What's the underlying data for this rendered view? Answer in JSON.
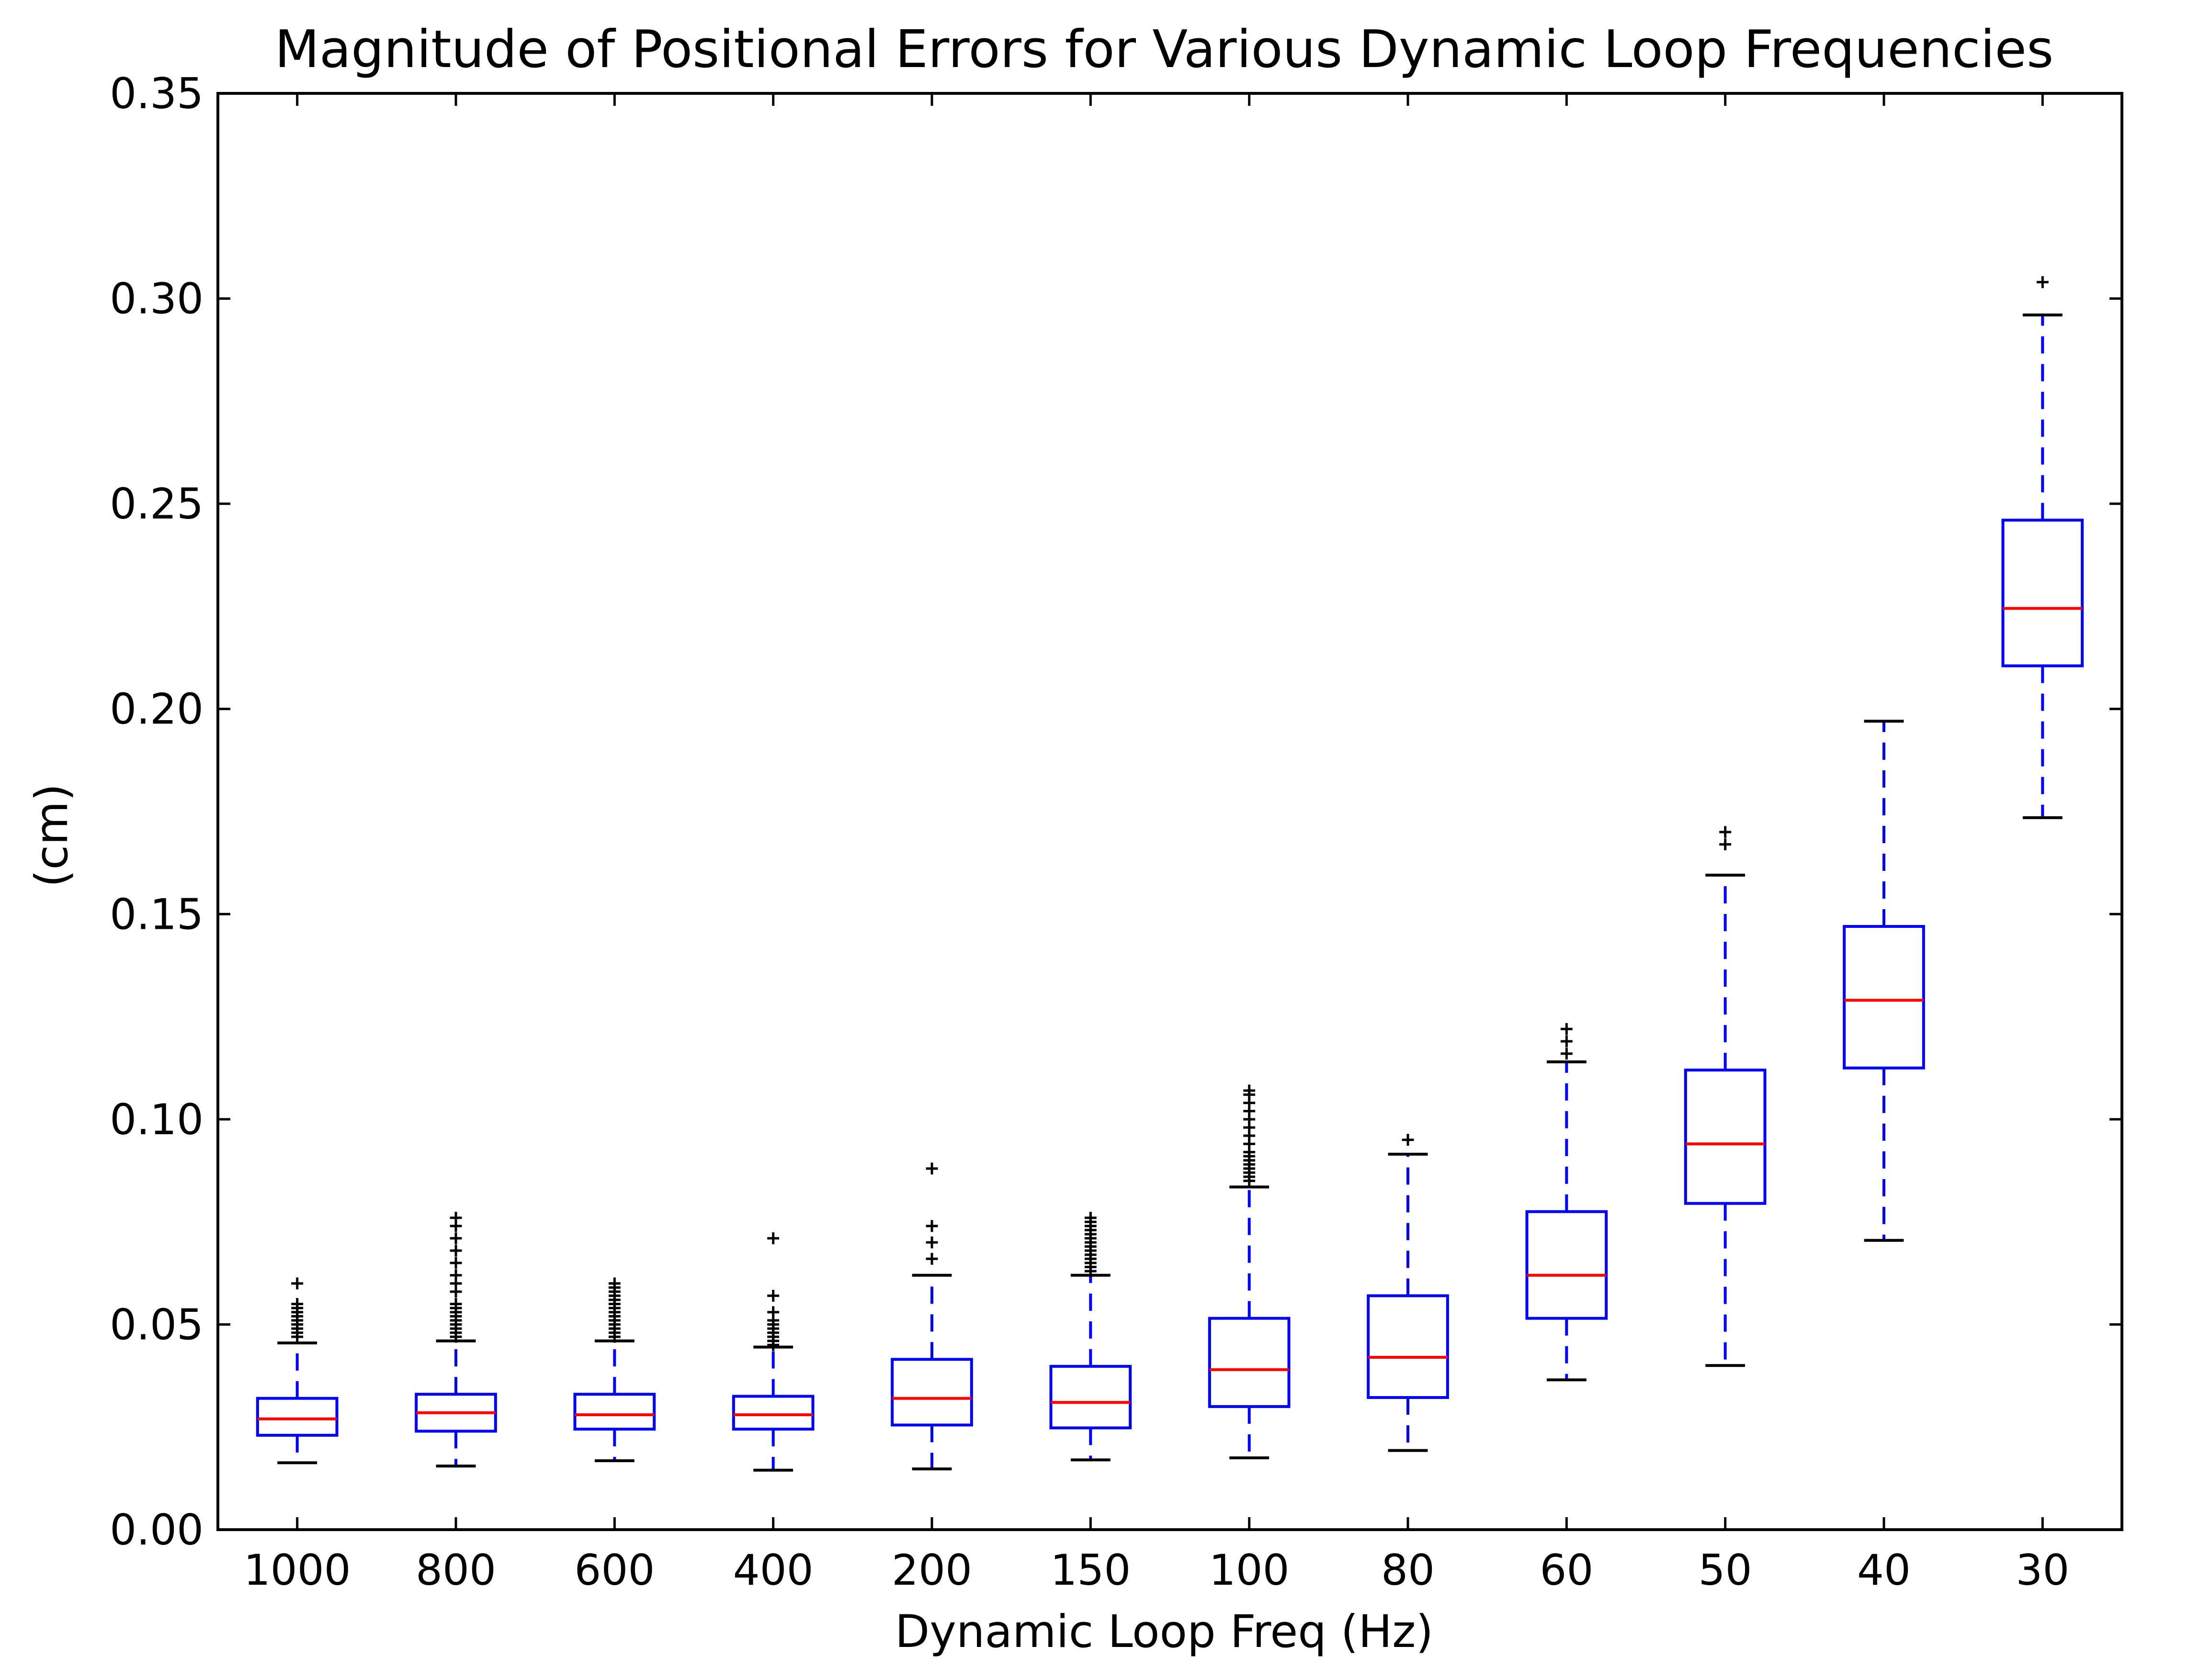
{
  "chart_data": {
    "type": "box",
    "title": "Magnitude of Positional Errors for Various Dynamic Loop Frequencies",
    "xlabel": "Dynamic Loop Freq (Hz)",
    "ylabel": "(cm)",
    "ylim": [
      0,
      0.35
    ],
    "yticks": [
      "0.00",
      "0.05",
      "0.10",
      "0.15",
      "0.20",
      "0.25",
      "0.30",
      "0.35"
    ],
    "grid": false,
    "legend": "none",
    "categories": [
      "1000",
      "800",
      "600",
      "400",
      "200",
      "150",
      "100",
      "80",
      "60",
      "50",
      "40",
      "30"
    ],
    "boxes": [
      {
        "whisker_low": 0.0163,
        "q1": 0.023,
        "median": 0.027,
        "q3": 0.032,
        "whisker_high": 0.0455,
        "outliers": [
          0.047,
          0.048,
          0.049,
          0.05,
          0.051,
          0.052,
          0.053,
          0.054,
          0.055,
          0.06
        ]
      },
      {
        "whisker_low": 0.0155,
        "q1": 0.024,
        "median": 0.0285,
        "q3": 0.033,
        "whisker_high": 0.046,
        "outliers": [
          0.047,
          0.048,
          0.049,
          0.05,
          0.051,
          0.052,
          0.053,
          0.054,
          0.055,
          0.058,
          0.06,
          0.062,
          0.065,
          0.068,
          0.071,
          0.074,
          0.076
        ]
      },
      {
        "whisker_low": 0.0168,
        "q1": 0.0245,
        "median": 0.028,
        "q3": 0.033,
        "whisker_high": 0.046,
        "outliers": [
          0.047,
          0.048,
          0.049,
          0.05,
          0.051,
          0.052,
          0.053,
          0.054,
          0.055,
          0.056,
          0.057,
          0.058,
          0.059,
          0.06
        ]
      },
      {
        "whisker_low": 0.0145,
        "q1": 0.0245,
        "median": 0.028,
        "q3": 0.0325,
        "whisker_high": 0.0445,
        "outliers": [
          0.045,
          0.046,
          0.047,
          0.048,
          0.049,
          0.05,
          0.051,
          0.053,
          0.057,
          0.071
        ]
      },
      {
        "whisker_low": 0.0148,
        "q1": 0.0255,
        "median": 0.032,
        "q3": 0.0415,
        "whisker_high": 0.062,
        "outliers": [
          0.066,
          0.07,
          0.074,
          0.088
        ]
      },
      {
        "whisker_low": 0.017,
        "q1": 0.0248,
        "median": 0.031,
        "q3": 0.0398,
        "whisker_high": 0.062,
        "outliers": [
          0.063,
          0.064,
          0.065,
          0.066,
          0.067,
          0.068,
          0.069,
          0.07,
          0.071,
          0.072,
          0.073,
          0.074,
          0.075,
          0.076
        ]
      },
      {
        "whisker_low": 0.0175,
        "q1": 0.03,
        "median": 0.039,
        "q3": 0.0515,
        "whisker_high": 0.0835,
        "outliers": [
          0.085,
          0.086,
          0.087,
          0.088,
          0.089,
          0.09,
          0.091,
          0.092,
          0.094,
          0.096,
          0.098,
          0.1,
          0.102,
          0.104,
          0.106,
          0.107
        ]
      },
      {
        "whisker_low": 0.0193,
        "q1": 0.0322,
        "median": 0.042,
        "q3": 0.057,
        "whisker_high": 0.0915,
        "outliers": [
          0.095
        ]
      },
      {
        "whisker_low": 0.0365,
        "q1": 0.0515,
        "median": 0.062,
        "q3": 0.0775,
        "whisker_high": 0.114,
        "outliers": [
          0.116,
          0.119,
          0.122
        ]
      },
      {
        "whisker_low": 0.04,
        "q1": 0.0795,
        "median": 0.094,
        "q3": 0.112,
        "whisker_high": 0.1595,
        "outliers": [
          0.167,
          0.17
        ]
      },
      {
        "whisker_low": 0.0705,
        "q1": 0.1125,
        "median": 0.129,
        "q3": 0.147,
        "whisker_high": 0.197,
        "outliers": []
      },
      {
        "whisker_low": 0.1735,
        "q1": 0.2105,
        "median": 0.2245,
        "q3": 0.246,
        "whisker_high": 0.296,
        "outliers": [
          0.304
        ]
      }
    ],
    "colors": {
      "box": "#0000ff",
      "median": "#ff0000",
      "whisker": "#0000ff",
      "caps": "#000000",
      "outliers": "#000000"
    }
  }
}
